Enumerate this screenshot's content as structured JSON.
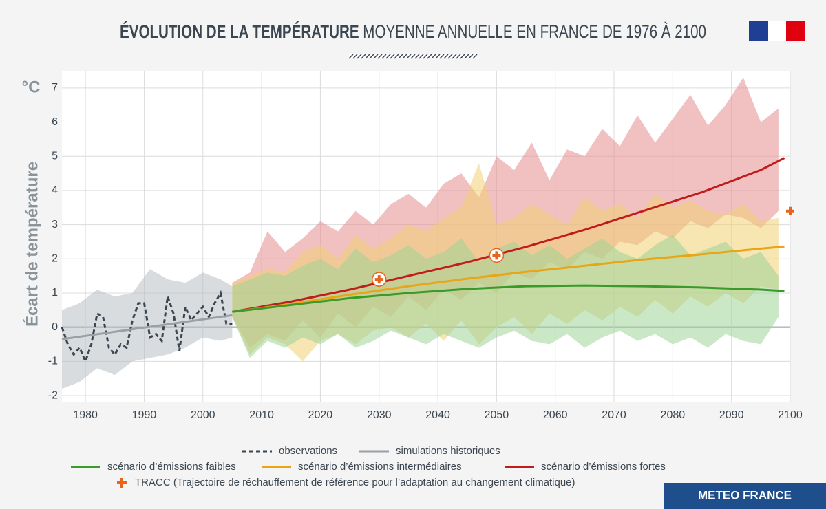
{
  "chart_data": {
    "type": "line",
    "title_bold": "ÉVOLUTION DE LA TEMPÉRATURE",
    "title_rest": " MOYENNE ANNUELLE EN FRANCE DE 1976 À 2100",
    "y_unit": "°C",
    "y_label": "Écart de température",
    "xlim": [
      1976,
      2100
    ],
    "ylim": [
      -2.2,
      7.5
    ],
    "xticks": [
      1980,
      1990,
      2000,
      2010,
      2020,
      2030,
      2040,
      2050,
      2060,
      2070,
      2080,
      2090,
      2100
    ],
    "yticks": [
      -2,
      -1,
      0,
      1,
      2,
      3,
      4,
      5,
      6,
      7
    ],
    "grid": true,
    "series": [
      {
        "name": "observations",
        "color": "#3b4650",
        "line_style": "dashed",
        "x": [
          1976,
          1977,
          1978,
          1979,
          1980,
          1981,
          1982,
          1983,
          1984,
          1985,
          1986,
          1987,
          1988,
          1989,
          1990,
          1991,
          1992,
          1993,
          1994,
          1995,
          1996,
          1997,
          1998,
          1999,
          2000,
          2001,
          2002,
          2003,
          2004,
          2005
        ],
        "values": [
          0,
          -0.5,
          -0.8,
          -0.6,
          -1.0,
          -0.5,
          0.4,
          0.3,
          -0.6,
          -0.8,
          -0.5,
          -0.6,
          0.2,
          0.7,
          0.7,
          -0.3,
          -0.2,
          -0.4,
          0.9,
          0.4,
          -0.7,
          0.6,
          0.2,
          0.4,
          0.6,
          0.3,
          0.7,
          1.0,
          0.1,
          0.1
        ]
      },
      {
        "name": "simulations historiques",
        "color": "#9aa0a6",
        "line_style": "solid",
        "band_color": "#b8bfc4",
        "x": [
          1976,
          2005
        ],
        "values": [
          -0.35,
          0.35
        ],
        "band": {
          "x": [
            1976,
            1979,
            1982,
            1985,
            1988,
            1991,
            1994,
            1997,
            2000,
            2003,
            2005
          ],
          "lower": [
            -1.8,
            -1.6,
            -1.2,
            -1.4,
            -1.0,
            -0.9,
            -0.8,
            -0.6,
            -0.3,
            -0.4,
            -0.3
          ],
          "upper": [
            0.5,
            0.7,
            1.1,
            0.9,
            1.0,
            1.7,
            1.4,
            1.3,
            1.6,
            1.4,
            1.2
          ]
        }
      },
      {
        "name": "scénario d’émissions fortes",
        "color": "#c01c1c",
        "line_style": "solid",
        "band_color": "#e58e8e",
        "x": [
          2005,
          2015,
          2025,
          2035,
          2045,
          2055,
          2065,
          2075,
          2085,
          2095,
          2099
        ],
        "values": [
          0.45,
          0.75,
          1.1,
          1.5,
          1.9,
          2.35,
          2.85,
          3.4,
          3.95,
          4.6,
          4.95
        ],
        "band": {
          "x": [
            2005,
            2008,
            2011,
            2014,
            2017,
            2020,
            2023,
            2026,
            2029,
            2032,
            2035,
            2038,
            2041,
            2044,
            2047,
            2050,
            2053,
            2056,
            2059,
            2062,
            2065,
            2068,
            2071,
            2074,
            2077,
            2080,
            2083,
            2086,
            2089,
            2092,
            2095,
            2098
          ],
          "lower": [
            0.3,
            -0.6,
            -0.2,
            -0.4,
            0.2,
            -0.3,
            0.4,
            0.0,
            0.6,
            0.3,
            0.9,
            0.5,
            1.1,
            0.8,
            1.3,
            1.0,
            1.6,
            1.4,
            1.9,
            1.7,
            2.2,
            2.0,
            2.5,
            2.4,
            2.8,
            2.6,
            3.1,
            2.9,
            3.3,
            3.2,
            2.9,
            3.4
          ],
          "upper": [
            1.3,
            1.6,
            2.8,
            2.2,
            2.6,
            3.1,
            2.8,
            3.4,
            3.0,
            3.6,
            3.9,
            3.5,
            4.2,
            4.5,
            3.8,
            5.0,
            4.6,
            5.4,
            4.3,
            5.2,
            5.0,
            5.8,
            5.3,
            6.2,
            5.4,
            6.1,
            6.8,
            5.9,
            6.5,
            7.3,
            6.0,
            6.4
          ]
        }
      },
      {
        "name": "scénario d’émissions intermédiaires",
        "color": "#e9a515",
        "line_style": "solid",
        "band_color": "#f0cf72",
        "x": [
          2005,
          2015,
          2025,
          2035,
          2045,
          2055,
          2065,
          2075,
          2085,
          2095,
          2099
        ],
        "values": [
          0.45,
          0.68,
          0.95,
          1.2,
          1.42,
          1.62,
          1.8,
          1.98,
          2.13,
          2.3,
          2.36
        ],
        "band": {
          "x": [
            2005,
            2008,
            2011,
            2014,
            2017,
            2020,
            2023,
            2026,
            2029,
            2032,
            2035,
            2038,
            2041,
            2044,
            2047,
            2050,
            2053,
            2056,
            2059,
            2062,
            2065,
            2068,
            2071,
            2074,
            2077,
            2080,
            2083,
            2086,
            2089,
            2092,
            2095,
            2098
          ],
          "lower": [
            0.3,
            -0.8,
            -0.3,
            -0.5,
            -1.0,
            -0.4,
            -0.2,
            -0.5,
            -0.1,
            0.0,
            -0.3,
            0.1,
            -0.4,
            0.2,
            -0.5,
            0.0,
            0.3,
            -0.2,
            0.4,
            0.1,
            0.5,
            0.2,
            0.6,
            0.3,
            0.8,
            0.4,
            0.9,
            0.6,
            1.0,
            0.7,
            1.2,
            1.1
          ],
          "upper": [
            1.3,
            1.5,
            1.7,
            1.6,
            2.2,
            2.4,
            2.0,
            2.7,
            2.3,
            2.6,
            3.0,
            2.8,
            3.2,
            3.5,
            4.8,
            3.0,
            3.2,
            3.6,
            3.3,
            3.0,
            3.8,
            3.4,
            3.6,
            3.2,
            3.9,
            3.5,
            3.7,
            3.4,
            3.3,
            3.6,
            3.1,
            3.2
          ]
        }
      },
      {
        "name": "scénario d’émissions faibles",
        "color": "#3a9a2a",
        "line_style": "solid",
        "band_color": "#9fd497",
        "x": [
          2005,
          2015,
          2025,
          2035,
          2045,
          2055,
          2065,
          2075,
          2085,
          2095,
          2099
        ],
        "values": [
          0.45,
          0.65,
          0.85,
          1.0,
          1.12,
          1.2,
          1.22,
          1.2,
          1.16,
          1.1,
          1.06
        ],
        "band": {
          "x": [
            2005,
            2008,
            2011,
            2014,
            2017,
            2020,
            2023,
            2026,
            2029,
            2032,
            2035,
            2038,
            2041,
            2044,
            2047,
            2050,
            2053,
            2056,
            2059,
            2062,
            2065,
            2068,
            2071,
            2074,
            2077,
            2080,
            2083,
            2086,
            2089,
            2092,
            2095,
            2098
          ],
          "lower": [
            0.3,
            -0.9,
            -0.4,
            -0.6,
            -0.3,
            -0.5,
            -0.2,
            -0.6,
            -0.4,
            -0.1,
            -0.3,
            -0.5,
            -0.2,
            -0.4,
            -0.6,
            -0.3,
            -0.1,
            -0.4,
            -0.5,
            -0.2,
            -0.6,
            -0.3,
            -0.1,
            -0.4,
            -0.2,
            -0.5,
            -0.3,
            -0.6,
            -0.2,
            -0.4,
            -0.5,
            0.3
          ],
          "upper": [
            1.2,
            1.4,
            1.6,
            1.5,
            1.8,
            2.0,
            1.7,
            2.3,
            1.9,
            2.1,
            2.4,
            2.0,
            2.2,
            2.6,
            1.9,
            2.3,
            2.5,
            2.1,
            2.4,
            2.0,
            2.3,
            2.6,
            2.2,
            2.0,
            2.4,
            2.7,
            2.1,
            2.3,
            2.5,
            2.0,
            2.2,
            1.5
          ]
        }
      }
    ],
    "tracc": {
      "name": "TRACC (Trajectoire de réchauffement de référence pour l’adaptation au changement climatique)",
      "color": "#e8641c",
      "x": [
        2030,
        2050,
        2100
      ],
      "values": [
        1.4,
        2.1,
        3.4
      ]
    },
    "footer": "METEO FRANCE"
  }
}
